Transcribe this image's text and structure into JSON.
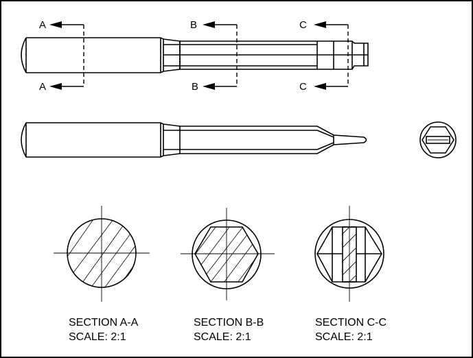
{
  "section_markers": [
    {
      "letter": "A"
    },
    {
      "letter": "B"
    },
    {
      "letter": "C"
    }
  ],
  "sections": [
    {
      "title": "SECTION A-A",
      "scale": "SCALE: 2:1"
    },
    {
      "title": "SECTION B-B",
      "scale": "SCALE: 2:1"
    },
    {
      "title": "SECTION C-C",
      "scale": "SCALE: 2:1"
    }
  ]
}
